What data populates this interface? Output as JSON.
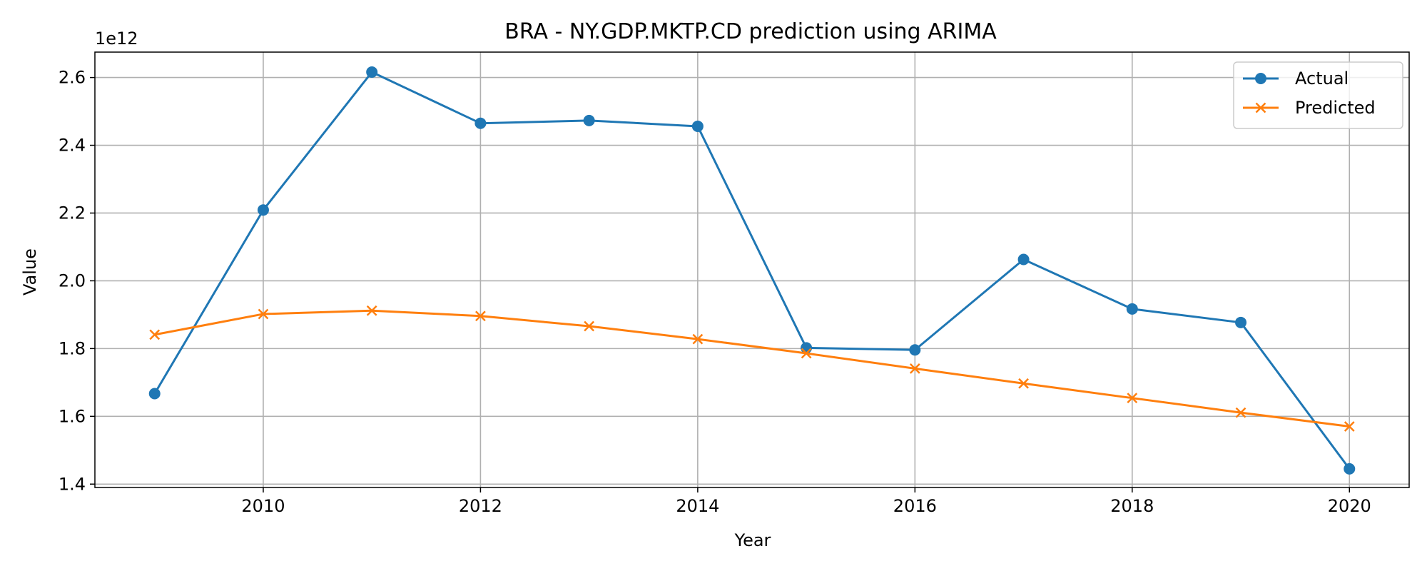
{
  "chart_data": {
    "type": "line",
    "title": "BRA - NY.GDP.MKTP.CD prediction using ARIMA",
    "xlabel": "Year",
    "ylabel": "Value",
    "y_offset_label": "1e12",
    "xlim": [
      2008.45,
      2020.55
    ],
    "ylim": [
      1.39,
      2.675
    ],
    "x_ticks": [
      2010,
      2012,
      2014,
      2016,
      2018,
      2020
    ],
    "x_tick_labels": [
      "2010",
      "2012",
      "2014",
      "2016",
      "2018",
      "2020"
    ],
    "y_ticks": [
      1.4,
      1.6,
      1.8,
      2.0,
      2.2,
      2.4,
      2.6
    ],
    "y_tick_labels": [
      "1.4",
      "1.6",
      "1.8",
      "2.0",
      "2.2",
      "2.4",
      "2.6"
    ],
    "grid": true,
    "legend_position": "top-right",
    "x": [
      2009,
      2010,
      2011,
      2012,
      2013,
      2014,
      2015,
      2016,
      2017,
      2018,
      2019,
      2020
    ],
    "series": [
      {
        "name": "Actual",
        "marker": "circle",
        "color": "#1f77b4",
        "values": [
          1.667,
          2.209,
          2.616,
          2.465,
          2.473,
          2.456,
          1.802,
          1.796,
          2.063,
          1.917,
          1.877,
          1.445
        ]
      },
      {
        "name": "Predicted",
        "marker": "x",
        "color": "#ff7f0e",
        "values": [
          1.841,
          1.902,
          1.912,
          1.896,
          1.866,
          1.828,
          1.786,
          1.741,
          1.697,
          1.654,
          1.611,
          1.57
        ]
      }
    ]
  }
}
